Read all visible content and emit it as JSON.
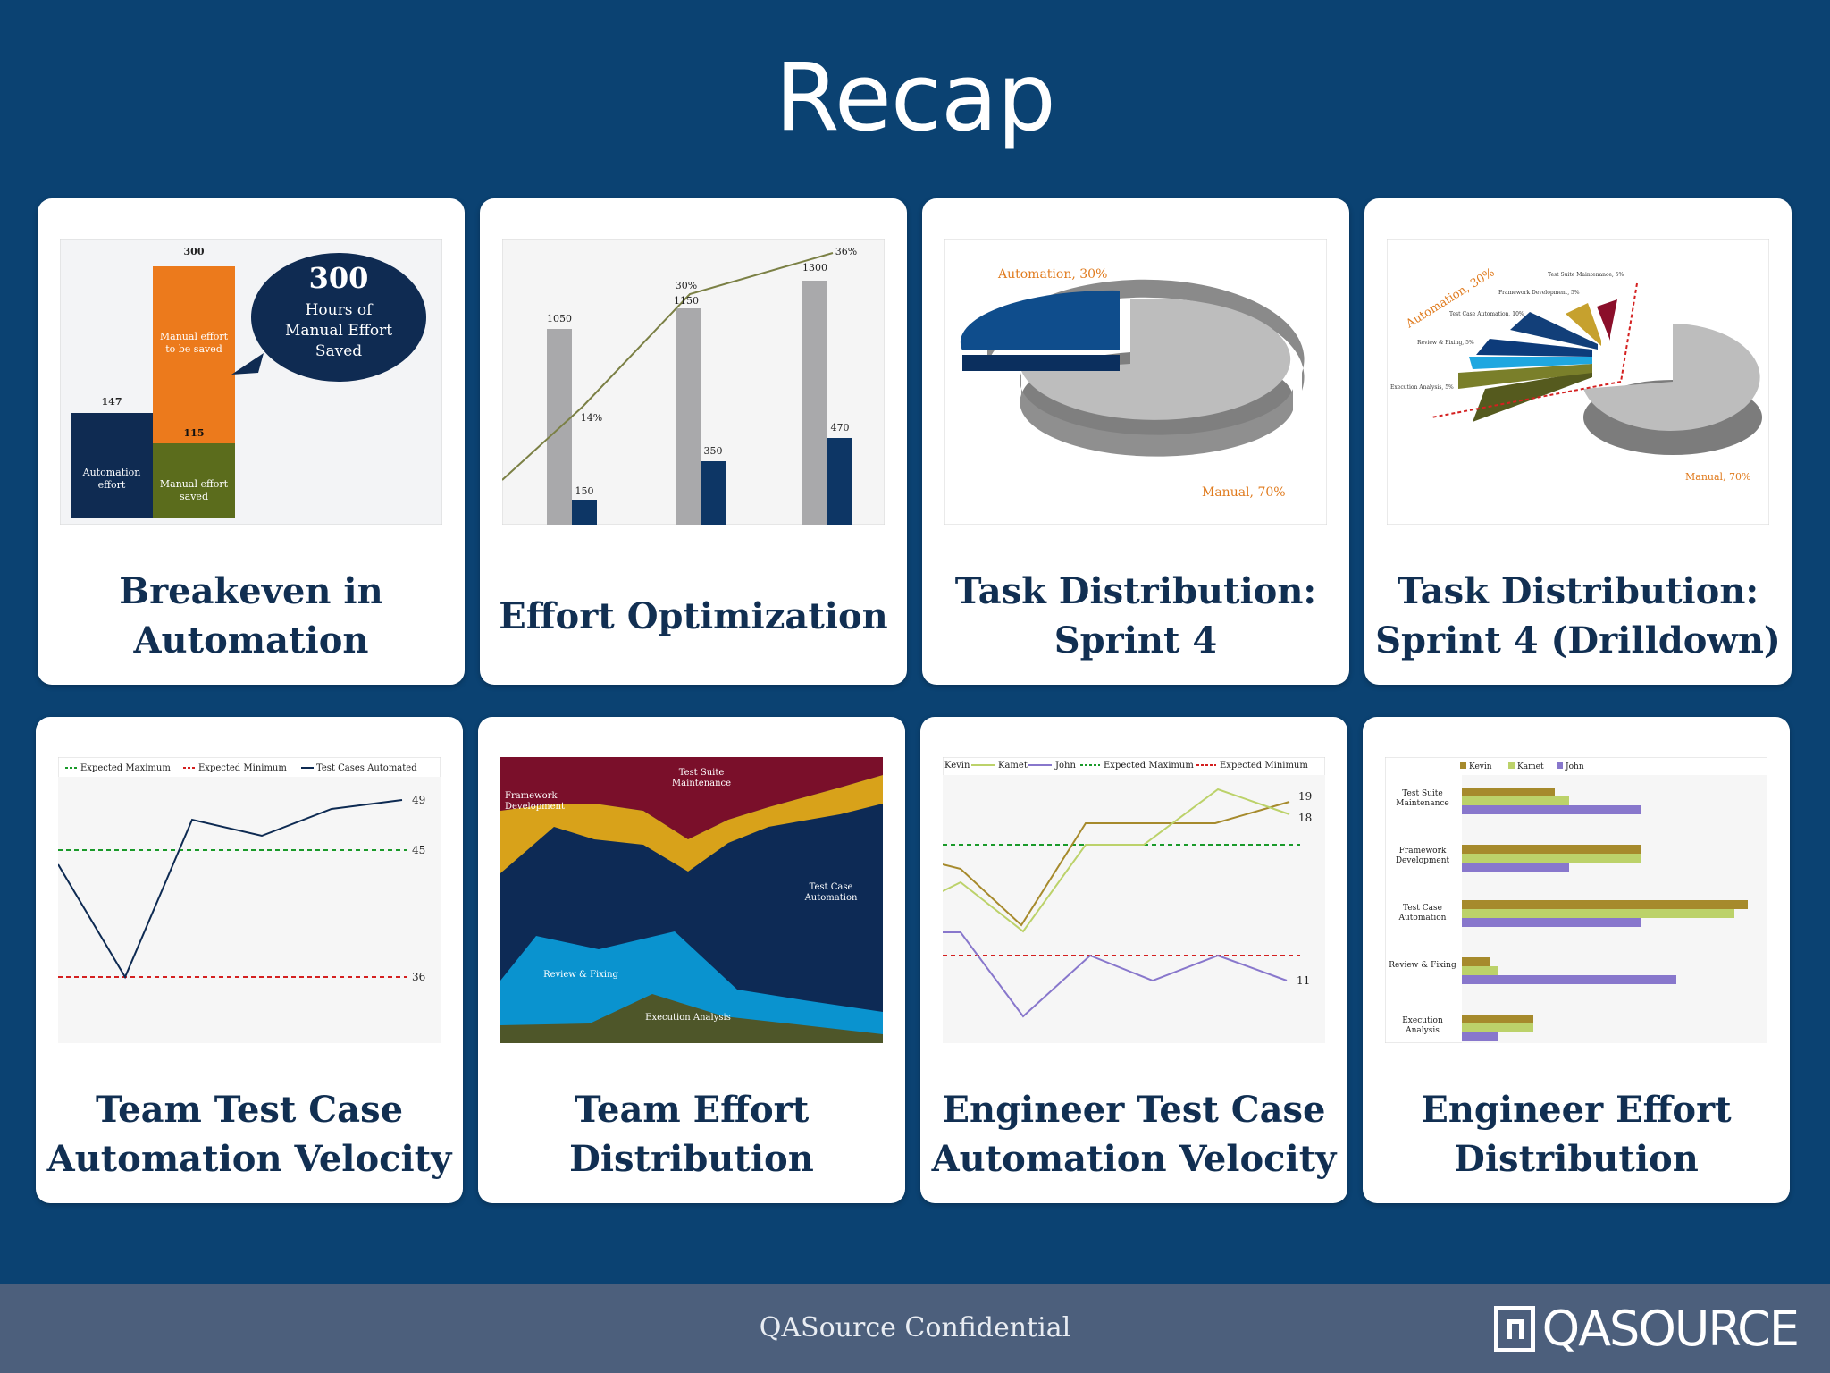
{
  "slide": {
    "title": "Recap"
  },
  "cards": [
    {
      "label": "Breakeven in Automation"
    },
    {
      "label": "Effort Optimization"
    },
    {
      "label": "Task Distribution: Sprint 4"
    },
    {
      "label": "Task Distribution: Sprint 4 (Drilldown)"
    },
    {
      "label": "Team Test Case Automation Velocity"
    },
    {
      "label": "Team Effort Distribution"
    },
    {
      "label": "Engineer Test Case Automation Velocity"
    },
    {
      "label": "Engineer Effort Distribution"
    }
  ],
  "thumbs": {
    "breakeven": {
      "top_value": "300",
      "left_value": "147",
      "mid_value": "115",
      "automation_label": "Automation effort",
      "manual_to_save": "Manual effort to be saved",
      "manual_saved": "Manual effort saved",
      "bubble_number": "300",
      "bubble_line1": "Hours of",
      "bubble_line2": "Manual Effort",
      "bubble_line3": "Saved"
    },
    "effort": {
      "grey_values": [
        "1050",
        "1150",
        "1300"
      ],
      "navy_values": [
        "150",
        "350",
        "470"
      ],
      "pcts": [
        "14%",
        "30%",
        "36%"
      ]
    },
    "task": {
      "automation": "Automation, 30%",
      "manual": "Manual, 70%"
    },
    "drill": {
      "automation": "Automation, 30%",
      "manual": "Manual, 70%",
      "suite": "Test Suite Maintenance, 5%",
      "framework": "Framework Development, 5%",
      "tca": "Test Case Automation, 10%",
      "review": "Review & Fixing, 5%",
      "exec": "Execution Analysis, 5%"
    },
    "velocity": {
      "legend_max": "Expected Maximum",
      "legend_min": "Expected Minimum",
      "legend_auto": "Test Cases Automated",
      "v49": "49",
      "v45": "45",
      "v36": "36"
    },
    "team_effort": {
      "suite": "Test Suite Maintenance",
      "framework": "Framework Development",
      "tca": "Test Case Automation",
      "review": "Review & Fixing",
      "exec": "Execution Analysis"
    },
    "engineer_velocity": {
      "kevin": "Kevin",
      "kamet": "Kamet",
      "john": "John",
      "max": "Expected Maximum",
      "min": "Expected Minimum",
      "v19": "19",
      "v18": "18",
      "v11": "11"
    },
    "engineer_effort": {
      "kevin": "Kevin",
      "kamet": "Kamet",
      "john": "John",
      "suite": "Test Suite Maintenance",
      "framework": "Framework Development",
      "tca": "Test Case Automation",
      "review": "Review & Fixing",
      "exec": "Execution Analysis"
    }
  },
  "footer": {
    "text": "QASource Confidential",
    "logo": "QASOURCE"
  }
}
